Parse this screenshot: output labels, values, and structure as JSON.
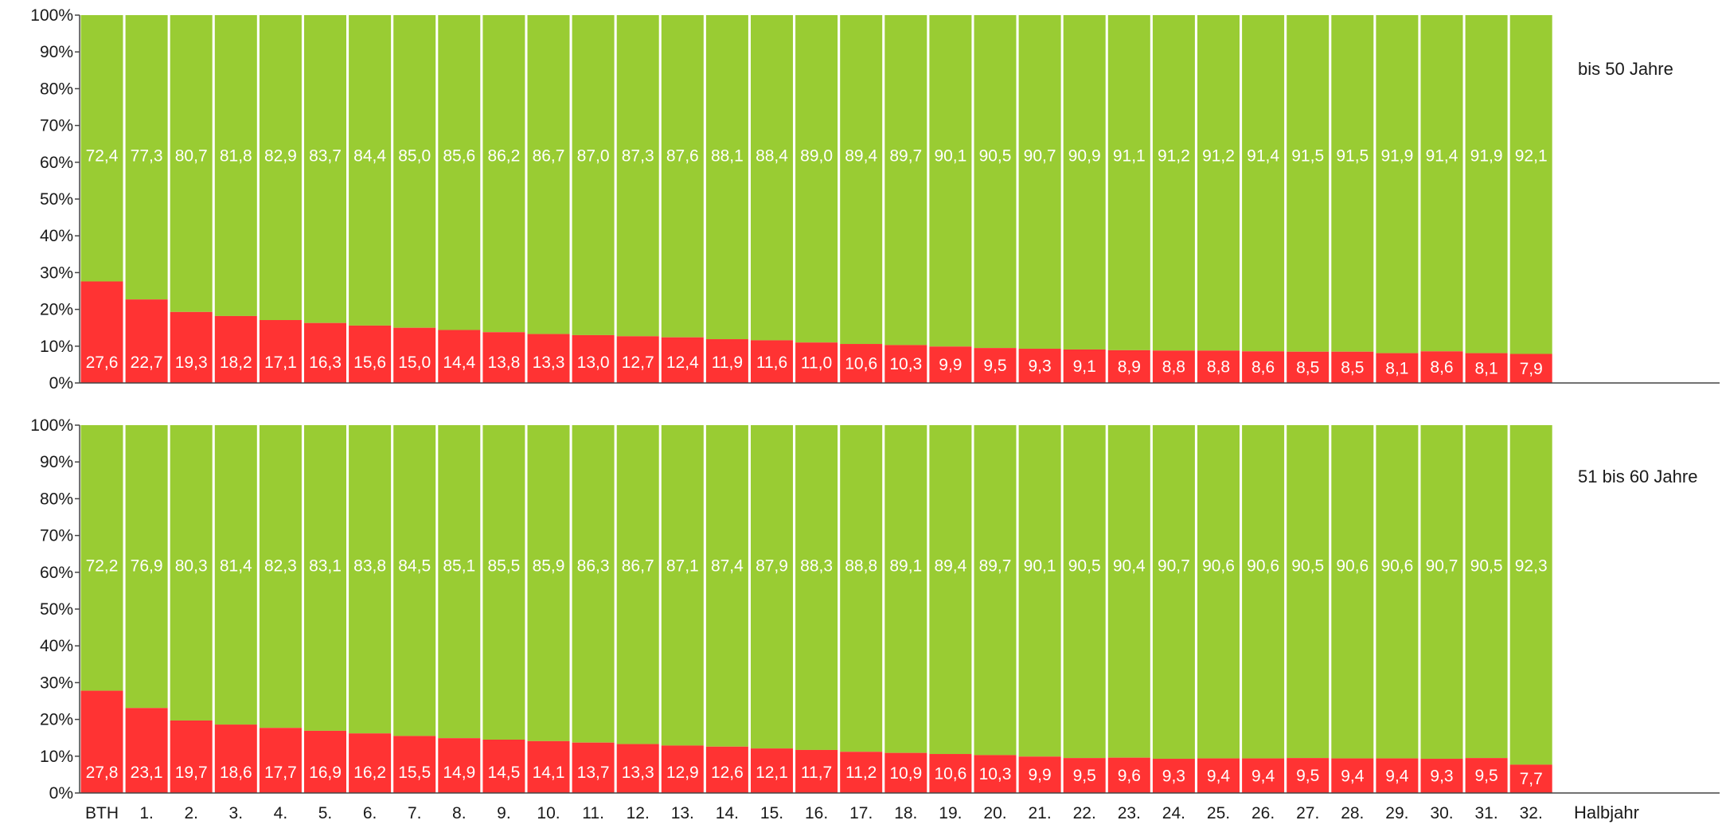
{
  "chart_data": [
    {
      "type": "bar",
      "stacked": true,
      "percent_stacked": true,
      "title": "bis 50 Jahre",
      "xlabel": "Halbjahr",
      "ylabel": "",
      "ylim": [
        0,
        100
      ],
      "yticks": [
        "0%",
        "10%",
        "20%",
        "30%",
        "40%",
        "50%",
        "60%",
        "70%",
        "80%",
        "90%",
        "100%"
      ],
      "categories": [
        "BTH",
        "1.",
        "2.",
        "3.",
        "4.",
        "5.",
        "6.",
        "7.",
        "8.",
        "9.",
        "10.",
        "11.",
        "12.",
        "13.",
        "14.",
        "15.",
        "16.",
        "17.",
        "18.",
        "19.",
        "20.",
        "21.",
        "22.",
        "23.",
        "24.",
        "25.",
        "26.",
        "27.",
        "28.",
        "29.",
        "30.",
        "31.",
        "32."
      ],
      "series": [
        {
          "color": "#ff3333",
          "values": [
            27.6,
            22.7,
            19.3,
            18.2,
            17.1,
            16.3,
            15.6,
            15.0,
            14.4,
            13.8,
            13.3,
            13.0,
            12.7,
            12.4,
            11.9,
            11.6,
            11.0,
            10.6,
            10.3,
            9.9,
            9.5,
            9.3,
            9.1,
            8.9,
            8.8,
            8.8,
            8.6,
            8.5,
            8.5,
            8.1,
            8.6,
            8.1,
            7.9
          ],
          "labels": [
            "27,6",
            "22,7",
            "19,3",
            "18,2",
            "17,1",
            "16,3",
            "15,6",
            "15,0",
            "14,4",
            "13,8",
            "13,3",
            "13,0",
            "12,7",
            "12,4",
            "11,9",
            "11,6",
            "11,0",
            "10,6",
            "10,3",
            "9,9",
            "9,5",
            "9,3",
            "9,1",
            "8,9",
            "8,8",
            "8,8",
            "8,6",
            "8,5",
            "8,5",
            "8,1",
            "8,6",
            "8,1",
            "7,9"
          ]
        },
        {
          "color": "#99cc33",
          "values": [
            72.4,
            77.3,
            80.7,
            81.8,
            82.9,
            83.7,
            84.4,
            85.0,
            85.6,
            86.2,
            86.7,
            87.0,
            87.3,
            87.6,
            88.1,
            88.4,
            89.0,
            89.4,
            89.7,
            90.1,
            90.5,
            90.7,
            90.9,
            91.1,
            91.2,
            91.2,
            91.4,
            91.5,
            91.5,
            91.9,
            91.4,
            91.9,
            92.1
          ],
          "labels": [
            "72,4",
            "77,3",
            "80,7",
            "81,8",
            "82,9",
            "83,7",
            "84,4",
            "85,0",
            "85,6",
            "86,2",
            "86,7",
            "87,0",
            "87,3",
            "87,6",
            "88,1",
            "88,4",
            "89,0",
            "89,4",
            "89,7",
            "90,1",
            "90,5",
            "90,7",
            "90,9",
            "91,1",
            "91,2",
            "91,2",
            "91,4",
            "91,5",
            "91,5",
            "91,9",
            "91,4",
            "91,9",
            "92,1"
          ]
        }
      ]
    },
    {
      "type": "bar",
      "stacked": true,
      "percent_stacked": true,
      "title": "51 bis 60 Jahre",
      "xlabel": "Halbjahr",
      "ylabel": "",
      "ylim": [
        0,
        100
      ],
      "yticks": [
        "0%",
        "10%",
        "20%",
        "30%",
        "40%",
        "50%",
        "60%",
        "70%",
        "80%",
        "90%",
        "100%"
      ],
      "categories": [
        "BTH",
        "1.",
        "2.",
        "3.",
        "4.",
        "5.",
        "6.",
        "7.",
        "8.",
        "9.",
        "10.",
        "11.",
        "12.",
        "13.",
        "14.",
        "15.",
        "16.",
        "17.",
        "18.",
        "19.",
        "20.",
        "21.",
        "22.",
        "23.",
        "24.",
        "25.",
        "26.",
        "27.",
        "28.",
        "29.",
        "30.",
        "31.",
        "32."
      ],
      "series": [
        {
          "color": "#ff3333",
          "values": [
            27.8,
            23.1,
            19.7,
            18.6,
            17.7,
            16.9,
            16.2,
            15.5,
            14.9,
            14.5,
            14.1,
            13.7,
            13.3,
            12.9,
            12.6,
            12.1,
            11.7,
            11.2,
            10.9,
            10.6,
            10.3,
            9.9,
            9.5,
            9.6,
            9.3,
            9.4,
            9.4,
            9.5,
            9.4,
            9.4,
            9.3,
            9.5,
            7.7
          ],
          "labels": [
            "27,8",
            "23,1",
            "19,7",
            "18,6",
            "17,7",
            "16,9",
            "16,2",
            "15,5",
            "14,9",
            "14,5",
            "14,1",
            "13,7",
            "13,3",
            "12,9",
            "12,6",
            "12,1",
            "11,7",
            "11,2",
            "10,9",
            "10,6",
            "10,3",
            "9,9",
            "9,5",
            "9,6",
            "9,3",
            "9,4",
            "9,4",
            "9,5",
            "9,4",
            "9,4",
            "9,3",
            "9,5",
            "7,7"
          ]
        },
        {
          "color": "#99cc33",
          "values": [
            72.2,
            76.9,
            80.3,
            81.4,
            82.3,
            83.1,
            83.8,
            84.5,
            85.1,
            85.5,
            85.9,
            86.3,
            86.7,
            87.1,
            87.4,
            87.9,
            88.3,
            88.8,
            89.1,
            89.4,
            89.7,
            90.1,
            90.5,
            90.4,
            90.7,
            90.6,
            90.6,
            90.5,
            90.6,
            90.6,
            90.7,
            90.5,
            92.3
          ],
          "labels": [
            "72,2",
            "76,9",
            "80,3",
            "81,4",
            "82,3",
            "83,1",
            "83,8",
            "84,5",
            "85,1",
            "85,5",
            "85,9",
            "86,3",
            "86,7",
            "87,1",
            "87,4",
            "87,9",
            "88,3",
            "88,8",
            "89,1",
            "89,4",
            "89,7",
            "90,1",
            "90,5",
            "90,4",
            "90,7",
            "90,6",
            "90,6",
            "90,5",
            "90,6",
            "90,6",
            "90,7",
            "90,5",
            "92,3"
          ]
        }
      ]
    }
  ]
}
